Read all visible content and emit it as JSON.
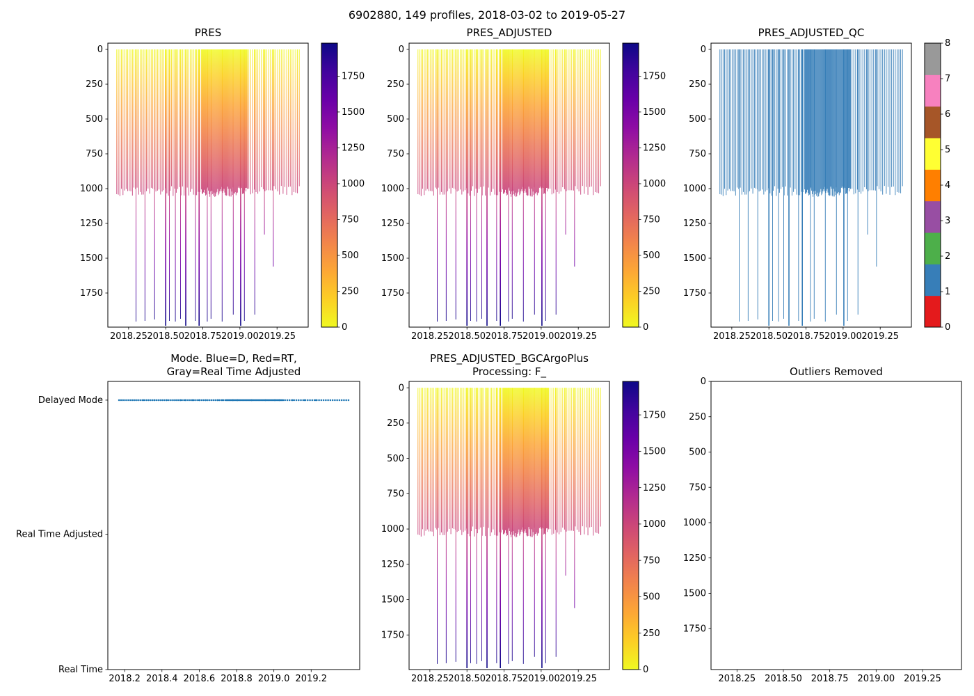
{
  "figure": {
    "title": "6902880, 149 profiles, 2018-03-02 to 2019-05-27"
  },
  "chart_data": {
    "type": "multi-panel",
    "figure_title": "6902880, 149 profiles, 2018-03-02 to 2019-05-27",
    "float_id": "6902880",
    "n_profiles": 149,
    "date_range": [
      "2018-03-02",
      "2019-05-27"
    ],
    "time_axis": {
      "xlim": [
        2018.11,
        2019.46
      ],
      "x_ticks_major": [
        2018.25,
        2018.5,
        2018.75,
        2019.0,
        2019.25
      ],
      "x_tick_labels": [
        "2018.25",
        "2018.50",
        "2018.75",
        "2019.00",
        "2019.25"
      ]
    },
    "depth_axis": {
      "ticks": [
        0,
        250,
        500,
        750,
        1000,
        1250,
        1500,
        1750
      ],
      "tick_labels": [
        "0",
        "250",
        "500",
        "750",
        "1000",
        "1250",
        "1500",
        "1750"
      ],
      "ylim_profile": [
        -45,
        1995
      ],
      "ylim_outliers": [
        0,
        2040
      ]
    },
    "profiles": {
      "segments": [
        {
          "x_start": 2018.17,
          "x_end": 2018.74,
          "count": 55,
          "depth_min": 980,
          "depth_max": 1055
        },
        {
          "x_start": 2018.745,
          "x_end": 2019.05,
          "count": 65,
          "depth_min": 985,
          "depth_max": 1060
        },
        {
          "x_start": 2019.06,
          "x_end": 2019.4,
          "count": 29,
          "depth_min": 980,
          "depth_max": 1050
        }
      ],
      "deep_profiles": [
        {
          "x": 2018.3,
          "depth": 1955
        },
        {
          "x": 2018.36,
          "depth": 1950
        },
        {
          "x": 2018.425,
          "depth": 1940
        },
        {
          "x": 2018.5,
          "depth": 1985,
          "width": 1.6
        },
        {
          "x": 2018.525,
          "depth": 1950
        },
        {
          "x": 2018.565,
          "depth": 1955
        },
        {
          "x": 2018.6,
          "depth": 1935
        },
        {
          "x": 2018.635,
          "depth": 1985,
          "width": 1.6
        },
        {
          "x": 2018.7,
          "depth": 1950
        },
        {
          "x": 2018.725,
          "depth": 1985,
          "width": 1.6
        },
        {
          "x": 2018.78,
          "depth": 1955
        },
        {
          "x": 2018.805,
          "depth": 1935
        },
        {
          "x": 2018.88,
          "depth": 1955
        },
        {
          "x": 2018.955,
          "depth": 1905
        },
        {
          "x": 2019.005,
          "depth": 1985,
          "width": 1.6
        },
        {
          "x": 2019.03,
          "depth": 1950
        },
        {
          "x": 2019.1,
          "depth": 1905
        },
        {
          "x": 2019.165,
          "depth": 1330
        },
        {
          "x": 2019.225,
          "depth": 1560
        }
      ]
    },
    "pressure_colormap": {
      "name": "plasma_r",
      "vmin": 0,
      "vmax": 1980,
      "colorbar_ticks": [
        0,
        250,
        500,
        750,
        1000,
        1250,
        1500,
        1750
      ],
      "colorbar_tick_labels": [
        "0",
        "250",
        "500",
        "750",
        "1000",
        "1250",
        "1500",
        "1750"
      ],
      "stops": [
        "#f0f921",
        "#fcce25",
        "#fca636",
        "#f2844b",
        "#e16462",
        "#cc4778",
        "#b12a90",
        "#8f0da4",
        "#6a00a8",
        "#41049d",
        "#0d0887"
      ]
    },
    "qc_colormap": {
      "ticks": [
        0,
        1,
        2,
        3,
        4,
        5,
        6,
        7,
        8
      ],
      "tick_labels": [
        "0",
        "1",
        "2",
        "3",
        "4",
        "5",
        "6",
        "7",
        "8"
      ],
      "colors": [
        "#e41a1c",
        "#377eb8",
        "#4daf4a",
        "#984ea3",
        "#ff7f00",
        "#ffff33",
        "#a65628",
        "#f781bf",
        "#999999"
      ]
    },
    "panels": [
      {
        "key": "pres",
        "type": "profile-lines",
        "title": "PRES",
        "has_colorbar": "pressure"
      },
      {
        "key": "pres_adjusted",
        "type": "profile-lines",
        "title": "PRES_ADJUSTED",
        "has_colorbar": "pressure"
      },
      {
        "key": "pres_adjusted_qc",
        "type": "profile-lines-flat",
        "title": "PRES_ADJUSTED_QC",
        "line_color": "#377eb8",
        "qc_values_present": [
          1
        ],
        "has_colorbar": "qc"
      },
      {
        "key": "mode",
        "type": "category-scatter",
        "title_lines": [
          "Mode. Blue=D, Red=RT,",
          "Gray=Real Time Adjusted"
        ],
        "y_categories": [
          "Delayed Mode",
          "Real Time Adjusted",
          "Real Time"
        ],
        "observed_mode": "Delayed Mode",
        "dot_color": "#1f77b4",
        "x_ticks": [
          2018.2,
          2018.4,
          2018.6,
          2018.8,
          2019.0,
          2019.2
        ],
        "x_tick_labels": [
          "2018.2",
          "2018.4",
          "2018.6",
          "2018.8",
          "2019.0",
          "2019.2"
        ]
      },
      {
        "key": "bgc",
        "type": "profile-lines",
        "title_lines": [
          "PRES_ADJUSTED_BGCArgoPlus",
          "Processing: F_"
        ],
        "has_colorbar": "pressure"
      },
      {
        "key": "outliers",
        "type": "empty",
        "title": "Outliers Removed",
        "has_colorbar": "none"
      }
    ]
  }
}
